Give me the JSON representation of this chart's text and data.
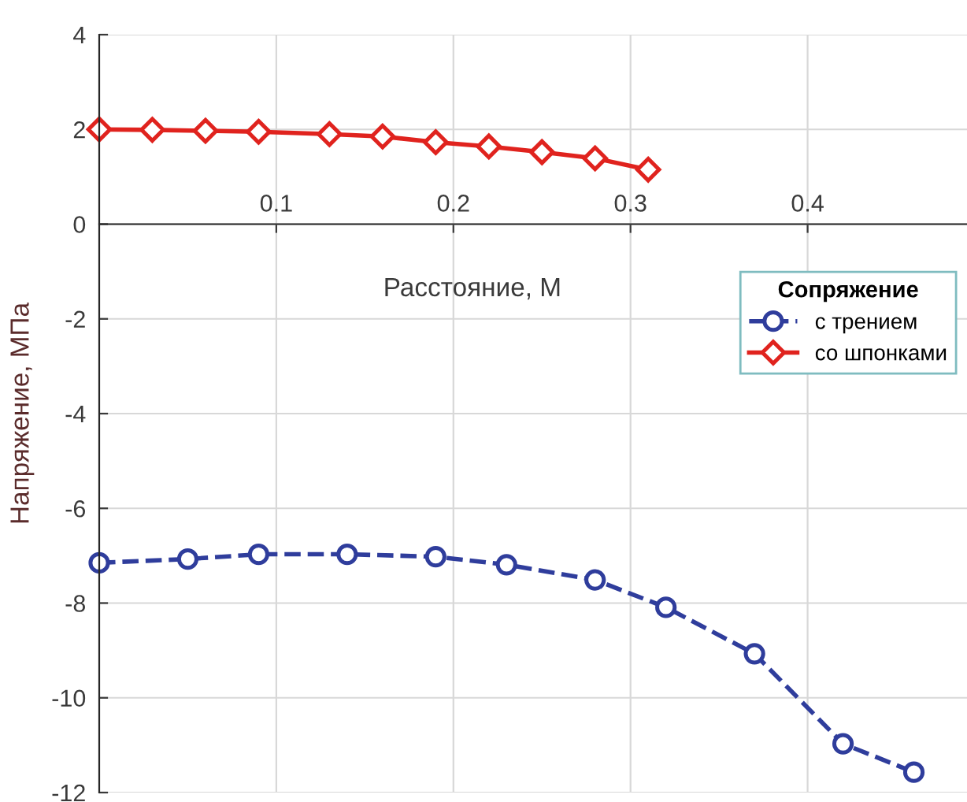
{
  "chart_data": {
    "type": "line",
    "xlabel": "Расстояние, М",
    "ylabel": "Напряжение, МПа",
    "legend_title": "Сопряжение",
    "xlim": [
      0,
      0.49
    ],
    "ylim": [
      -12,
      4
    ],
    "xticks": [
      0.1,
      0.2,
      0.3,
      0.4
    ],
    "yticks": [
      -12,
      -10,
      -8,
      -6,
      -4,
      -2,
      0,
      2,
      4
    ],
    "grid": true,
    "legend": "right",
    "series": [
      {
        "name": "с трением",
        "color": "#2f3d9c",
        "marker": "circle",
        "line_style": "dashed",
        "x": [
          0,
          0.05,
          0.09,
          0.14,
          0.19,
          0.23,
          0.28,
          0.32,
          0.37,
          0.42,
          0.46
        ],
        "values": [
          -7.15,
          -7.07,
          -6.97,
          -6.97,
          -7.02,
          -7.19,
          -7.51,
          -8.09,
          -9.07,
          -10.97,
          -11.57
        ]
      },
      {
        "name": "со шпонками",
        "color": "#e0231e",
        "marker": "diamond",
        "line_style": "solid",
        "x": [
          0,
          0.03,
          0.06,
          0.09,
          0.13,
          0.16,
          0.19,
          0.22,
          0.25,
          0.28,
          0.31
        ],
        "values": [
          2.0,
          1.99,
          1.97,
          1.95,
          1.9,
          1.85,
          1.73,
          1.64,
          1.52,
          1.39,
          1.15
        ]
      }
    ]
  }
}
